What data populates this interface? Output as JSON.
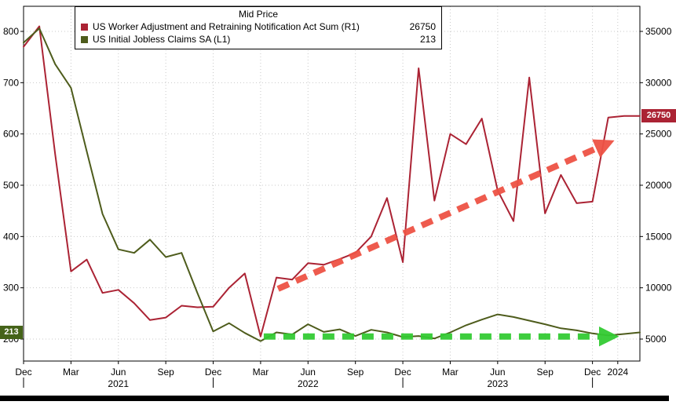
{
  "legend": {
    "title": "Mid Price",
    "series": [
      {
        "label": "US Worker Adjustment and Retraining Notification Act Sum  (R1)",
        "value": "26750"
      },
      {
        "label": "US Initial Jobless Claims SA  (L1)",
        "value": "213"
      }
    ]
  },
  "badges": {
    "left": {
      "text": "213",
      "color": "#456319"
    },
    "right": {
      "text": "26750",
      "color": "#ab2334"
    }
  },
  "chart_data": {
    "type": "line",
    "title": "Mid Price",
    "x_start": "Dec 2020",
    "x_frequency": "monthly",
    "left_axis_ticks": [
      200,
      300,
      400,
      500,
      600,
      700,
      800
    ],
    "right_axis_ticks": [
      5000,
      10000,
      15000,
      20000,
      25000,
      30000,
      35000
    ],
    "left_axis_range": [
      200,
      800
    ],
    "right_axis_range": [
      5000,
      35000
    ],
    "grid": true,
    "x_ticks": [
      {
        "i": 0,
        "label": "Dec"
      },
      {
        "i": 3,
        "label": "Mar"
      },
      {
        "i": 6,
        "label": "Jun"
      },
      {
        "i": 9,
        "label": "Sep"
      },
      {
        "i": 12,
        "label": "Dec"
      },
      {
        "i": 15,
        "label": "Mar"
      },
      {
        "i": 18,
        "label": "Jun"
      },
      {
        "i": 21,
        "label": "Sep"
      },
      {
        "i": 24,
        "label": "Dec"
      },
      {
        "i": 27,
        "label": "Mar"
      },
      {
        "i": 30,
        "label": "Jun"
      },
      {
        "i": 33,
        "label": "Sep"
      },
      {
        "i": 36,
        "label": "Dec"
      },
      {
        "i": 37.6,
        "label": "2024"
      }
    ],
    "year_ticks": [
      {
        "i": 6,
        "label": "2021"
      },
      {
        "i": 18,
        "label": "2022"
      },
      {
        "i": 30,
        "label": "2023"
      }
    ],
    "series": [
      {
        "name": "US Worker Adjustment and Retraining Notification Act Sum",
        "axis": "right",
        "color": "#ab2334",
        "last_value": 26750,
        "values": [
          33500,
          35500,
          23000,
          11600,
          12750,
          9500,
          9800,
          8500,
          6850,
          7100,
          8250,
          8100,
          8150,
          10000,
          11400,
          5250,
          11000,
          10800,
          12400,
          12250,
          12800,
          13400,
          15000,
          18750,
          12500,
          31400,
          18500,
          25000,
          24000,
          26500,
          19500,
          16500,
          30500,
          17250,
          21000,
          18250,
          18400,
          26600,
          26750,
          26750
        ]
      },
      {
        "name": "US Initial Jobless Claims SA",
        "axis": "left",
        "color": "#4e5c1c",
        "last_value": 213,
        "values": [
          778,
          806,
          736,
          690,
          566,
          444,
          375,
          368,
          394,
          360,
          368,
          290,
          215,
          231,
          212,
          196,
          213,
          209,
          229,
          214,
          219,
          206,
          218,
          213,
          204,
          206,
          201,
          213,
          227,
          238,
          248,
          243,
          236,
          229,
          221,
          217,
          211,
          207,
          210,
          213
        ]
      }
    ],
    "annotations": [
      {
        "type": "trend-arrow",
        "axis": "right",
        "color": "#ee5345",
        "from_i": 16.1,
        "from_value": 9900,
        "to_i": 36.4,
        "to_value": 23700
      },
      {
        "type": "trend-arrow",
        "axis": "left",
        "color": "#33cb33",
        "from_i": 15.2,
        "from_value": 205,
        "to_i": 36.6,
        "to_value": 205
      }
    ]
  }
}
